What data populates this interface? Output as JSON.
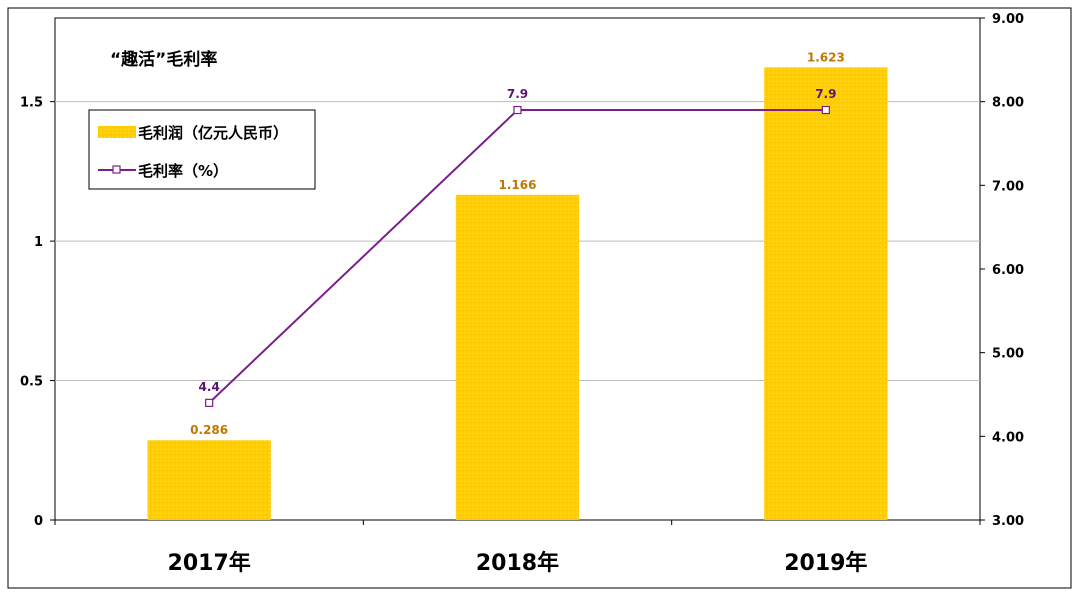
{
  "chart_data": {
    "type": "bar",
    "title": "“趣活”毛利率",
    "categories": [
      "2017年",
      "2018年",
      "2019年"
    ],
    "series": [
      {
        "name": "毛利润（亿元人民币）",
        "type": "bar",
        "axis": "left",
        "values": [
          0.286,
          1.166,
          1.623
        ],
        "labels": [
          "0.286",
          "1.166",
          "1.623"
        ],
        "color": "#FFCC00"
      },
      {
        "name": "毛利率（%）",
        "type": "line",
        "axis": "right",
        "values": [
          4.4,
          7.9,
          7.9
        ],
        "labels": [
          "4.4",
          "7.9",
          "7.9"
        ],
        "color": "#7B1F8C"
      }
    ],
    "y_left": {
      "min": 0,
      "max": 1.8,
      "ticks": [
        0,
        0.5,
        1,
        1.5
      ],
      "tick_labels": [
        "0",
        "0.5",
        "1",
        "1.5"
      ]
    },
    "y_right": {
      "min": 3,
      "max": 9,
      "ticks": [
        3,
        4,
        5,
        6,
        7,
        8,
        9
      ],
      "tick_labels": [
        "3.00",
        "4.00",
        "5.00",
        "6.00",
        "7.00",
        "8.00",
        "9.00"
      ]
    },
    "grid": true,
    "legend_position": "top-left"
  }
}
